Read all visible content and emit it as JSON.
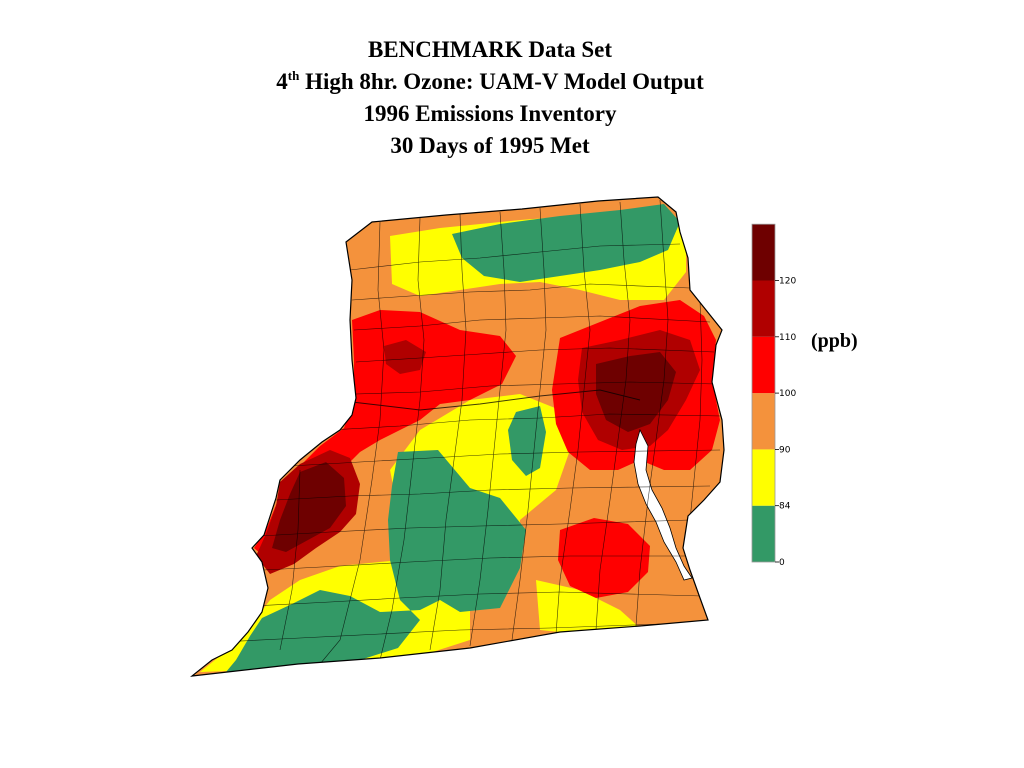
{
  "title": {
    "line1": "BENCHMARK Data Set",
    "line2_number": "4",
    "line2_superscript": "th",
    "line2_rest": " High 8hr. Ozone:  UAM-V Model Output",
    "line3": "1996 Emissions Inventory",
    "line4": "30 Days of 1995 Met"
  },
  "legend": {
    "units": "(ppb)",
    "classes": [
      {
        "min": 0,
        "max": 84,
        "color": "#339966"
      },
      {
        "min": 84,
        "max": 90,
        "color": "#ffff00"
      },
      {
        "min": 90,
        "max": 100,
        "color": "#f4923c"
      },
      {
        "min": 100,
        "max": 110,
        "color": "#ff0000"
      },
      {
        "min": 110,
        "max": 120,
        "color": "#b00000"
      },
      {
        "min": 120,
        "max": null,
        "color": "#6e0000"
      }
    ],
    "tick_labels": [
      "0",
      "84",
      "90",
      "100",
      "110",
      "120"
    ]
  },
  "map": {
    "boundary_color": "#000000",
    "water_color": "#ffffff"
  }
}
